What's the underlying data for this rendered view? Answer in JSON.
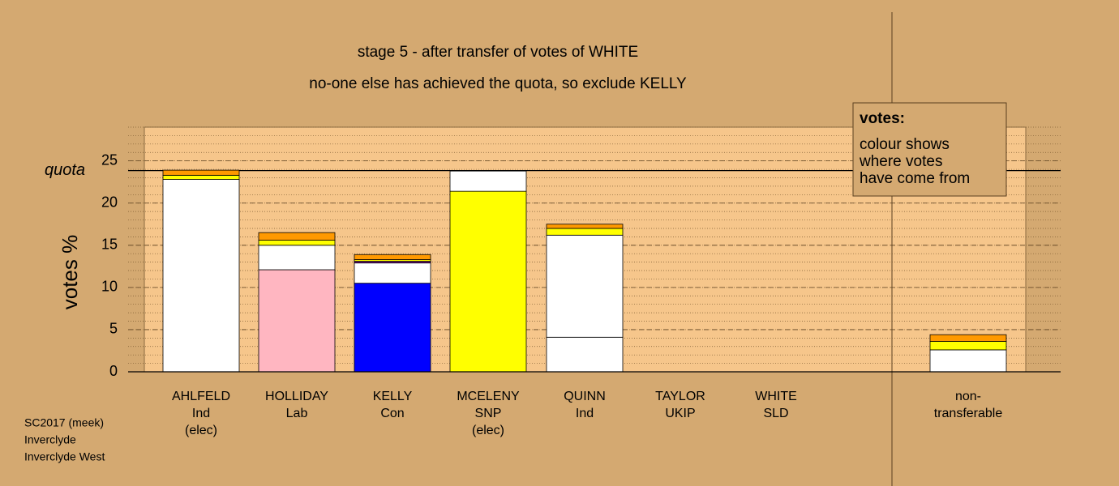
{
  "chart_data": {
    "type": "stacked-bar",
    "title": "stage 5 - after transfer of votes of WHITE",
    "subtitle": "no-one else has achieved the quota, so exclude KELLY",
    "y_label": "votes %",
    "ylim": [
      0,
      29
    ],
    "yticks": [
      0,
      5,
      10,
      15,
      20,
      25
    ],
    "quota": {
      "label": "quota",
      "value": 23.85
    },
    "legend": {
      "title": "votes:",
      "lines": [
        "colour shows",
        "where votes",
        "have come from"
      ]
    },
    "footer": [
      "SC2017 (meek)",
      "Inverclyde",
      "Inverclyde West"
    ],
    "bars": [
      {
        "label": [
          "AHLFELD",
          "Ind",
          "(elec)"
        ],
        "segments": [
          {
            "color": "#ffffff",
            "value": 22.8
          },
          {
            "color": "#ffff00",
            "value": 0.5
          },
          {
            "color": "#ff9900",
            "value": 0.6
          }
        ]
      },
      {
        "label": [
          "HOLLIDAY",
          "Lab"
        ],
        "segments": [
          {
            "color": "#ffb6c1",
            "value": 12.1
          },
          {
            "color": "#ffffff",
            "value": 2.9
          },
          {
            "color": "#ffff00",
            "value": 0.6
          },
          {
            "color": "#ff9900",
            "value": 0.9
          }
        ]
      },
      {
        "label": [
          "KELLY",
          "Con"
        ],
        "segments": [
          {
            "color": "#0000ff",
            "value": 10.5
          },
          {
            "color": "#ffffff",
            "value": 2.4
          },
          {
            "color": "#6a0d83",
            "value": 0.2
          },
          {
            "color": "#ffff00",
            "value": 0.2
          },
          {
            "color": "#ff9900",
            "value": 0.6
          }
        ]
      },
      {
        "label": [
          "MCELENY",
          "SNP",
          "(elec)"
        ],
        "segments": [
          {
            "color": "#ffff00",
            "value": 21.4
          },
          {
            "color": "#ffffff",
            "value": 2.4
          }
        ]
      },
      {
        "label": [
          "QUINN",
          "Ind"
        ],
        "segments": [
          {
            "color": "#ffffff",
            "value": 4.1
          },
          {
            "color": "#ffffff",
            "value": 12.1
          },
          {
            "color": "#ffff00",
            "value": 0.8
          },
          {
            "color": "#ff9900",
            "value": 0.5
          }
        ]
      },
      {
        "label": [
          "TAYLOR",
          "UKIP"
        ],
        "segments": []
      },
      {
        "label": [
          "WHITE",
          "SLD"
        ],
        "segments": []
      },
      {
        "label": [
          "non-",
          "transferable"
        ],
        "segments": [
          {
            "color": "#ffffff",
            "value": 2.6
          },
          {
            "color": "#ffff00",
            "value": 1.0
          },
          {
            "color": "#ff9900",
            "value": 0.8
          }
        ]
      }
    ]
  }
}
